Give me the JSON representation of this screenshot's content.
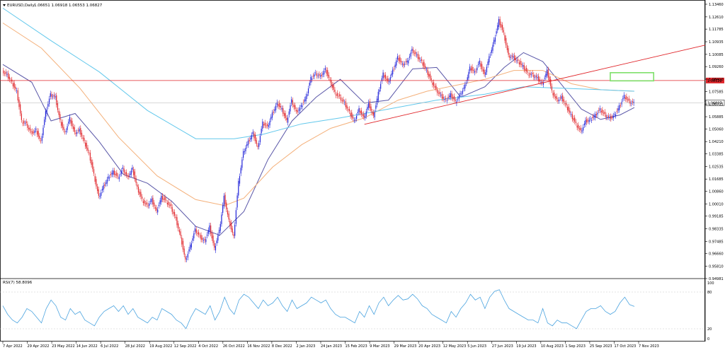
{
  "header": {
    "symbol_label": "EURUSD,Daily",
    "ohlc_label": "1.06651 1.06918 1.06553 1.06827"
  },
  "rsi_panel": {
    "label": "RSI(7) 58.8096",
    "levels": [
      80,
      20
    ],
    "scale_labels": [
      "100",
      "80",
      "20",
      "0"
    ]
  },
  "colors": {
    "bull_candle": "#1f22d8",
    "bear_candle": "#e0252a",
    "ma_fast": "#5a57a8",
    "ma_mid": "#f4b07a",
    "ma_slow": "#62c8ec",
    "resistance_line": "#e0252a",
    "trendline": "#e0252a",
    "target_box": "#7ee06a",
    "rsi_line": "#4aa3df",
    "price_tag_red": "#e0252a",
    "current_price_tag": "#ffffff"
  },
  "chart_data": {
    "type": "candlestick",
    "title": "EURUSD,Daily",
    "ylim": [
      0.9498,
      1.1346
    ],
    "y_ticks": [
      "1.13460",
      "1.12610",
      "1.11785",
      "1.10935",
      "1.10085",
      "1.09260",
      "1.08410",
      "1.07585",
      "1.06735",
      "1.05885",
      "1.05060",
      "1.04210",
      "1.03385",
      "1.02535",
      "1.01685",
      "1.00860",
      "1.00010",
      "0.99185",
      "0.98335",
      "0.97485",
      "0.96660",
      "0.95810",
      "0.94981"
    ],
    "x_ticks": [
      "7 Apr 2022",
      "29 Apr 2022",
      "23 May 2022",
      "14 Jun 2022",
      "6 Jul 2022",
      "28 Jul 2022",
      "19 Aug 2022",
      "12 Sep 2022",
      "4 Oct 2022",
      "26 Oct 2022",
      "16 Nov 2022",
      "8 Dec 2022",
      "2 Jan 2023",
      "24 Jan 2023",
      "15 Feb 2023",
      "9 Mar 2023",
      "29 Mar 2023",
      "20 Apr 2023",
      "12 May 2023",
      "5 Jun 2023",
      "27 Jun 2023",
      "19 Jul 2023",
      "10 Aug 2023",
      "1 Sep 2023",
      "25 Sep 2023",
      "17 Oct 2023",
      "7 Nov 2023"
    ],
    "close_path": [
      [
        0,
        1.09
      ],
      [
        1,
        1.087
      ],
      [
        2,
        1.082
      ],
      [
        3,
        1.076
      ],
      [
        4,
        1.056
      ],
      [
        5,
        1.054
      ],
      [
        6,
        1.048
      ],
      [
        7,
        1.05
      ],
      [
        8,
        1.042
      ],
      [
        9,
        1.062
      ],
      [
        10,
        1.074
      ],
      [
        11,
        1.072
      ],
      [
        12,
        1.056
      ],
      [
        13,
        1.048
      ],
      [
        14,
        1.058
      ],
      [
        15,
        1.048
      ],
      [
        16,
        1.05
      ],
      [
        17,
        1.042
      ],
      [
        18,
        1.034
      ],
      [
        19,
        1.02
      ],
      [
        20,
        1.005
      ],
      [
        21,
        1.012
      ],
      [
        22,
        1.018
      ],
      [
        23,
        1.022
      ],
      [
        24,
        1.018
      ],
      [
        25,
        1.024
      ],
      [
        26,
        1.018
      ],
      [
        27,
        1.024
      ],
      [
        28,
        1.011
      ],
      [
        29,
        1.003
      ],
      [
        30,
        0.999
      ],
      [
        31,
        1.003
      ],
      [
        32,
        0.995
      ],
      [
        33,
        1.005
      ],
      [
        34,
        1.002
      ],
      [
        35,
        0.998
      ],
      [
        36,
        0.99
      ],
      [
        37,
        0.978
      ],
      [
        38,
        0.962
      ],
      [
        39,
        0.972
      ],
      [
        40,
        0.983
      ],
      [
        41,
        0.978
      ],
      [
        42,
        0.975
      ],
      [
        43,
        0.985
      ],
      [
        44,
        0.97
      ],
      [
        45,
        0.982
      ],
      [
        46,
        1.005
      ],
      [
        47,
        0.989
      ],
      [
        48,
        0.978
      ],
      [
        49,
        1.015
      ],
      [
        50,
        1.035
      ],
      [
        51,
        1.042
      ],
      [
        52,
        1.048
      ],
      [
        53,
        1.038
      ],
      [
        54,
        1.055
      ],
      [
        55,
        1.052
      ],
      [
        56,
        1.061
      ],
      [
        57,
        1.068
      ],
      [
        58,
        1.064
      ],
      [
        59,
        1.056
      ],
      [
        60,
        1.07
      ],
      [
        61,
        1.062
      ],
      [
        62,
        1.066
      ],
      [
        63,
        1.072
      ],
      [
        64,
        1.085
      ],
      [
        65,
        1.088
      ],
      [
        66,
        1.086
      ],
      [
        67,
        1.091
      ],
      [
        68,
        1.083
      ],
      [
        69,
        1.075
      ],
      [
        70,
        1.072
      ],
      [
        71,
        1.068
      ],
      [
        72,
        1.062
      ],
      [
        73,
        1.056
      ],
      [
        74,
        1.064
      ],
      [
        75,
        1.058
      ],
      [
        76,
        1.068
      ],
      [
        77,
        1.059
      ],
      [
        78,
        1.075
      ],
      [
        79,
        1.088
      ],
      [
        80,
        1.082
      ],
      [
        81,
        1.09
      ],
      [
        82,
        1.099
      ],
      [
        83,
        1.094
      ],
      [
        84,
        1.096
      ],
      [
        85,
        1.104
      ],
      [
        86,
        1.1
      ],
      [
        87,
        1.096
      ],
      [
        88,
        1.09
      ],
      [
        89,
        1.083
      ],
      [
        90,
        1.077
      ],
      [
        91,
        1.073
      ],
      [
        92,
        1.07
      ],
      [
        93,
        1.074
      ],
      [
        94,
        1.069
      ],
      [
        95,
        1.074
      ],
      [
        96,
        1.08
      ],
      [
        97,
        1.092
      ],
      [
        98,
        1.089
      ],
      [
        99,
        1.096
      ],
      [
        100,
        1.087
      ],
      [
        101,
        1.099
      ],
      [
        102,
        1.11
      ],
      [
        103,
        1.124
      ],
      [
        104,
        1.115
      ],
      [
        105,
        1.1
      ],
      [
        106,
        1.099
      ],
      [
        107,
        1.096
      ],
      [
        108,
        1.093
      ],
      [
        109,
        1.088
      ],
      [
        110,
        1.087
      ],
      [
        111,
        1.085
      ],
      [
        112,
        1.081
      ],
      [
        113,
        1.09
      ],
      [
        114,
        1.076
      ],
      [
        115,
        1.07
      ],
      [
        116,
        1.072
      ],
      [
        117,
        1.066
      ],
      [
        118,
        1.06
      ],
      [
        119,
        1.054
      ],
      [
        120,
        1.049
      ],
      [
        121,
        1.056
      ],
      [
        122,
        1.057
      ],
      [
        123,
        1.06
      ],
      [
        124,
        1.064
      ],
      [
        125,
        1.06
      ],
      [
        126,
        1.058
      ],
      [
        127,
        1.06
      ],
      [
        128,
        1.066
      ],
      [
        129,
        1.073
      ],
      [
        130,
        1.069
      ],
      [
        131,
        1.0683
      ]
    ],
    "series": [
      {
        "name": "MA fast",
        "color": "#5a57a8",
        "points": [
          [
            0,
            1.094
          ],
          [
            6,
            1.082
          ],
          [
            10,
            1.056
          ],
          [
            15,
            1.061
          ],
          [
            20,
            1.042
          ],
          [
            25,
            1.02
          ],
          [
            30,
            1.014
          ],
          [
            35,
            1.002
          ],
          [
            40,
            0.985
          ],
          [
            45,
            0.979
          ],
          [
            50,
            0.995
          ],
          [
            55,
            1.03
          ],
          [
            60,
            1.056
          ],
          [
            65,
            1.072
          ],
          [
            70,
            1.084
          ],
          [
            75,
            1.068
          ],
          [
            80,
            1.07
          ],
          [
            85,
            1.091
          ],
          [
            90,
            1.092
          ],
          [
            95,
            1.072
          ],
          [
            100,
            1.079
          ],
          [
            104,
            1.092
          ],
          [
            108,
            1.102
          ],
          [
            112,
            1.096
          ],
          [
            116,
            1.08
          ],
          [
            120,
            1.064
          ],
          [
            124,
            1.057
          ],
          [
            128,
            1.06
          ],
          [
            131,
            1.065
          ]
        ]
      },
      {
        "name": "MA mid",
        "color": "#f4b07a",
        "points": [
          [
            0,
            1.122
          ],
          [
            8,
            1.105
          ],
          [
            16,
            1.078
          ],
          [
            24,
            1.045
          ],
          [
            32,
            1.019
          ],
          [
            40,
            1.003
          ],
          [
            46,
            0.999
          ],
          [
            50,
            1.004
          ],
          [
            56,
            1.025
          ],
          [
            62,
            1.04
          ],
          [
            68,
            1.051
          ],
          [
            75,
            1.058
          ],
          [
            82,
            1.07
          ],
          [
            88,
            1.076
          ],
          [
            94,
            1.08
          ],
          [
            100,
            1.084
          ],
          [
            106,
            1.09
          ],
          [
            112,
            1.09
          ],
          [
            118,
            1.081
          ],
          [
            124,
            1.077
          ],
          [
            131,
            1.076
          ]
        ]
      },
      {
        "name": "MA slow",
        "color": "#62c8ec",
        "points": [
          [
            0,
            1.132
          ],
          [
            10,
            1.11
          ],
          [
            20,
            1.089
          ],
          [
            30,
            1.063
          ],
          [
            40,
            1.044
          ],
          [
            48,
            1.044
          ],
          [
            54,
            1.047
          ],
          [
            62,
            1.054
          ],
          [
            70,
            1.058
          ],
          [
            80,
            1.064
          ],
          [
            90,
            1.07
          ],
          [
            100,
            1.074
          ],
          [
            108,
            1.079
          ],
          [
            116,
            1.078
          ],
          [
            124,
            1.077
          ],
          [
            131,
            1.076
          ]
        ]
      }
    ],
    "annotations": {
      "resistance_level": 1.08322,
      "resistance_label": "1.08322",
      "current_price": 1.06827,
      "current_price_label": "1.06827",
      "trendline_points": [
        [
          75,
          1.0537
        ],
        [
          131,
          1.096
        ]
      ],
      "target_box": [
        [
          126,
          1.0885
        ],
        [
          135,
          1.083
        ]
      ]
    },
    "rsi": {
      "name": "RSI(7)",
      "ylim": [
        0,
        100
      ],
      "values": [
        60,
        45,
        35,
        30,
        40,
        55,
        50,
        40,
        30,
        55,
        70,
        60,
        40,
        35,
        55,
        45,
        50,
        35,
        30,
        25,
        40,
        50,
        55,
        60,
        50,
        60,
        45,
        55,
        40,
        35,
        30,
        40,
        35,
        55,
        50,
        45,
        35,
        30,
        20,
        40,
        55,
        50,
        45,
        60,
        35,
        50,
        75,
        55,
        45,
        70,
        80,
        75,
        65,
        55,
        70,
        60,
        65,
        75,
        60,
        50,
        70,
        55,
        60,
        65,
        75,
        70,
        65,
        70,
        55,
        45,
        40,
        40,
        35,
        30,
        50,
        40,
        60,
        45,
        65,
        75,
        60,
        70,
        78,
        70,
        72,
        80,
        72,
        60,
        55,
        45,
        40,
        35,
        30,
        50,
        40,
        55,
        65,
        80,
        70,
        75,
        55,
        75,
        85,
        88,
        70,
        55,
        50,
        45,
        40,
        35,
        35,
        30,
        55,
        30,
        25,
        35,
        30,
        30,
        25,
        20,
        35,
        50,
        55,
        55,
        60,
        50,
        45,
        50,
        65,
        75,
        62,
        58.8
      ]
    }
  }
}
